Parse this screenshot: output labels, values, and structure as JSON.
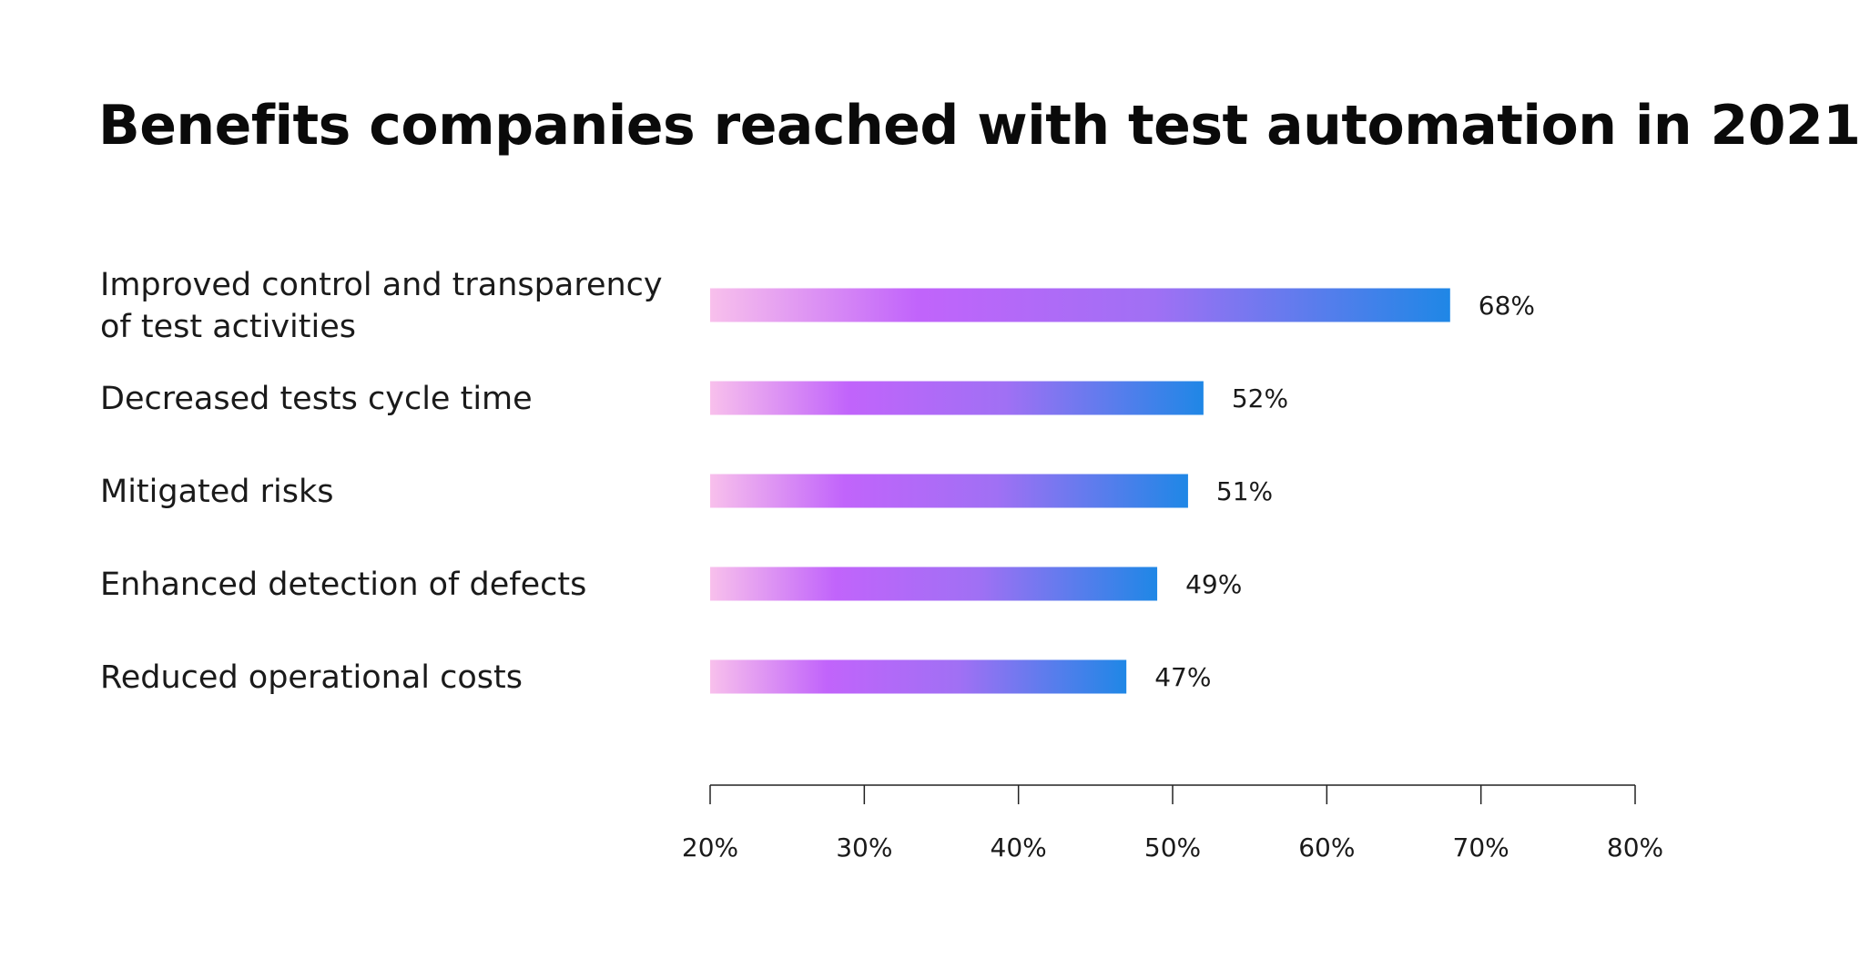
{
  "chart_data": {
    "type": "bar",
    "orientation": "horizontal",
    "title": "Benefits companies reached with test automation in 2021",
    "categories": [
      [
        "Improved control and transparency",
        "of test activities"
      ],
      [
        "Decreased tests cycle time"
      ],
      [
        "Mitigated risks"
      ],
      [
        "Enhanced detection of defects"
      ],
      [
        "Reduced operational costs"
      ]
    ],
    "values": [
      68,
      52,
      51,
      49,
      47
    ],
    "value_labels": [
      "68%",
      "52%",
      "51%",
      "49%",
      "47%"
    ],
    "xlim": [
      20,
      80
    ],
    "xticks": [
      20,
      30,
      40,
      50,
      60,
      70,
      80
    ],
    "xtick_labels": [
      "20%",
      "30%",
      "40%",
      "50%",
      "60%",
      "70%",
      "80%"
    ],
    "xlabel": "",
    "ylabel": "",
    "grid": false,
    "legend": "none",
    "bar_gradient": [
      "#f8c0ec",
      "#c164fb",
      "#a070f4",
      "#1f87e6"
    ]
  }
}
